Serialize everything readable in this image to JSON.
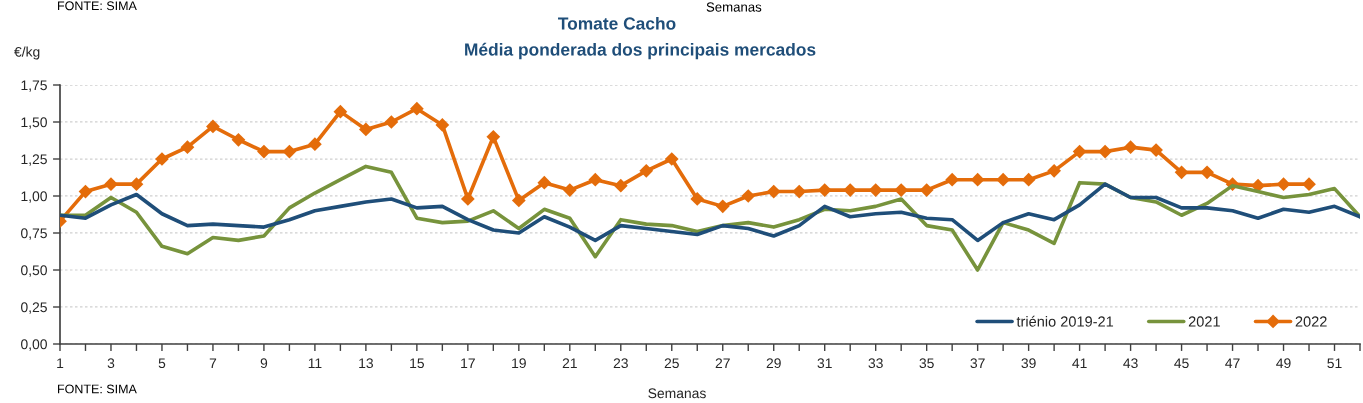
{
  "chart_data": {
    "type": "line",
    "title": "Tomate Cacho",
    "subtitle": "Média ponderada dos principais mercados",
    "xlabel": "Semanas",
    "ylabel": "€/kg",
    "annotations": [
      "FONTE: SIMA",
      "FONTE: SIMA",
      "Semanas"
    ],
    "x": [
      1,
      2,
      3,
      4,
      5,
      6,
      7,
      8,
      9,
      10,
      11,
      12,
      13,
      14,
      15,
      16,
      17,
      18,
      19,
      20,
      21,
      22,
      23,
      24,
      25,
      26,
      27,
      28,
      29,
      30,
      31,
      32,
      33,
      34,
      35,
      36,
      37,
      38,
      39,
      40,
      41,
      42,
      43,
      44,
      45,
      46,
      47,
      48,
      49,
      50,
      51,
      52
    ],
    "xlim": [
      1,
      52
    ],
    "xticks": [
      1,
      {
        "value": 2,
        "label": null
      },
      3,
      {
        "value": 4,
        "label": null
      },
      5,
      {
        "value": 6,
        "label": null
      },
      7,
      {
        "value": 8,
        "label": null
      },
      9,
      {
        "value": 10,
        "label": null
      },
      11,
      {
        "value": 12,
        "label": null
      },
      13,
      {
        "value": 14,
        "label": null
      },
      15,
      {
        "value": 16,
        "label": null
      },
      17,
      {
        "value": 18,
        "label": null
      },
      19,
      {
        "value": 20,
        "label": null
      },
      21,
      {
        "value": 22,
        "label": null
      },
      23,
      {
        "value": 24,
        "label": null
      },
      25,
      {
        "value": 26,
        "label": null
      },
      27,
      {
        "value": 28,
        "label": null
      },
      29,
      {
        "value": 30,
        "label": null
      },
      31,
      {
        "value": 32,
        "label": null
      },
      33,
      {
        "value": 34,
        "label": null
      },
      35,
      {
        "value": 36,
        "label": null
      },
      37,
      {
        "value": 38,
        "label": null
      },
      39,
      {
        "value": 40,
        "label": null
      },
      41,
      {
        "value": 42,
        "label": null
      },
      43,
      {
        "value": 44,
        "label": null
      },
      45,
      {
        "value": 46,
        "label": null
      },
      47,
      {
        "value": 48,
        "label": null
      },
      49,
      {
        "value": 50,
        "label": null
      },
      51,
      {
        "value": 52,
        "label": null
      }
    ],
    "ylim": [
      0,
      1.75
    ],
    "yticks": [
      {
        "value": 0,
        "label": "0,00"
      },
      {
        "value": 0.25,
        "label": "0,25"
      },
      {
        "value": 0.5,
        "label": "0,50"
      },
      {
        "value": 0.75,
        "label": "0,75"
      },
      {
        "value": 1.0,
        "label": "1,00"
      },
      {
        "value": 1.25,
        "label": "1,25"
      },
      {
        "value": 1.5,
        "label": "1,50"
      },
      {
        "value": 1.75,
        "label": "1,75"
      }
    ],
    "grid": "y",
    "legend": "bottom right",
    "line_style": "solid",
    "series": [
      {
        "name": "triénio 2019-21",
        "color": "#1f4e79",
        "marker": "none",
        "values": [
          0.87,
          0.85,
          0.94,
          1.01,
          0.88,
          0.8,
          0.81,
          0.8,
          0.79,
          0.84,
          0.9,
          0.93,
          0.96,
          0.98,
          0.92,
          0.93,
          0.84,
          0.77,
          0.75,
          0.86,
          0.79,
          0.7,
          0.8,
          0.78,
          0.76,
          0.74,
          0.8,
          0.78,
          0.73,
          0.8,
          0.93,
          0.86,
          0.88,
          0.89,
          0.85,
          0.84,
          0.7,
          0.82,
          0.88,
          0.84,
          0.94,
          1.08,
          0.99,
          0.99,
          0.92,
          0.92,
          0.9,
          0.85,
          0.91,
          0.89,
          0.93,
          0.86
        ]
      },
      {
        "name": "2021",
        "color": "#77933c",
        "marker": "none",
        "values": [
          0.87,
          0.87,
          0.99,
          0.89,
          0.66,
          0.61,
          0.72,
          0.7,
          0.73,
          0.92,
          1.02,
          1.11,
          1.2,
          1.16,
          0.85,
          0.82,
          0.83,
          0.9,
          0.78,
          0.91,
          0.85,
          0.59,
          0.84,
          0.81,
          0.8,
          0.76,
          0.8,
          0.82,
          0.79,
          0.84,
          0.91,
          0.9,
          0.93,
          0.98,
          0.8,
          0.77,
          0.5,
          0.82,
          0.77,
          0.68,
          1.09,
          1.08,
          0.99,
          0.96,
          0.87,
          0.95,
          1.07,
          1.03,
          0.99,
          1.01,
          1.05,
          0.86
        ]
      },
      {
        "name": "2022",
        "color": "#e46c0a",
        "marker": "diamond",
        "values": [
          0.83,
          1.03,
          1.08,
          1.08,
          1.25,
          1.33,
          1.47,
          1.38,
          1.3,
          1.3,
          1.35,
          1.57,
          1.45,
          1.5,
          1.59,
          1.48,
          0.98,
          1.4,
          0.97,
          1.09,
          1.04,
          1.11,
          1.07,
          1.17,
          1.25,
          0.98,
          0.93,
          1.0,
          1.03,
          1.03,
          1.04,
          1.04,
          1.04,
          1.04,
          1.04,
          1.11,
          1.11,
          1.11,
          1.11,
          1.17,
          1.3,
          1.3,
          1.33,
          1.31,
          1.16,
          1.16,
          1.08,
          1.07,
          1.08,
          1.08,
          null,
          null
        ]
      }
    ]
  }
}
